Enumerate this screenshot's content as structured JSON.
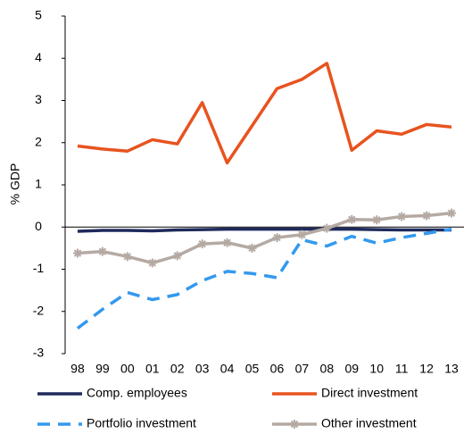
{
  "chart_data": {
    "type": "line",
    "y_label": "% GDP",
    "categories": [
      "98",
      "99",
      "00",
      "01",
      "02",
      "03",
      "04",
      "05",
      "06",
      "07",
      "08",
      "09",
      "10",
      "11",
      "12",
      "13"
    ],
    "ylim": [
      -3,
      5
    ],
    "yticks": [
      -3,
      -2,
      -1,
      0,
      1,
      2,
      3,
      4,
      5
    ],
    "series": [
      {
        "name": "Comp. employees",
        "color": "#1f2a5c",
        "dashed": false,
        "marker": "none",
        "values": [
          -0.1,
          -0.08,
          -0.08,
          -0.09,
          -0.07,
          -0.06,
          -0.05,
          -0.05,
          -0.05,
          -0.05,
          -0.05,
          -0.05,
          -0.06,
          -0.07,
          -0.07,
          -0.07
        ]
      },
      {
        "name": "Direct investment",
        "color": "#e8531f",
        "dashed": false,
        "marker": "none",
        "values": [
          1.92,
          1.85,
          1.8,
          2.07,
          1.97,
          2.95,
          1.52,
          2.4,
          3.28,
          3.5,
          3.88,
          1.82,
          2.28,
          2.2,
          2.43,
          2.37
        ]
      },
      {
        "name": "Portfolio investment",
        "color": "#3399ee",
        "dashed": true,
        "marker": "none",
        "values": [
          -2.4,
          -1.95,
          -1.55,
          -1.72,
          -1.6,
          -1.27,
          -1.05,
          -1.1,
          -1.2,
          -0.3,
          -0.45,
          -0.22,
          -0.38,
          -0.25,
          -0.15,
          -0.05
        ]
      },
      {
        "name": "Other investment",
        "color": "#b5aaa3",
        "dashed": false,
        "marker": "star",
        "values": [
          -0.62,
          -0.58,
          -0.7,
          -0.85,
          -0.68,
          -0.4,
          -0.37,
          -0.5,
          -0.25,
          -0.18,
          -0.03,
          0.18,
          0.17,
          0.25,
          0.27,
          0.33
        ]
      }
    ]
  }
}
